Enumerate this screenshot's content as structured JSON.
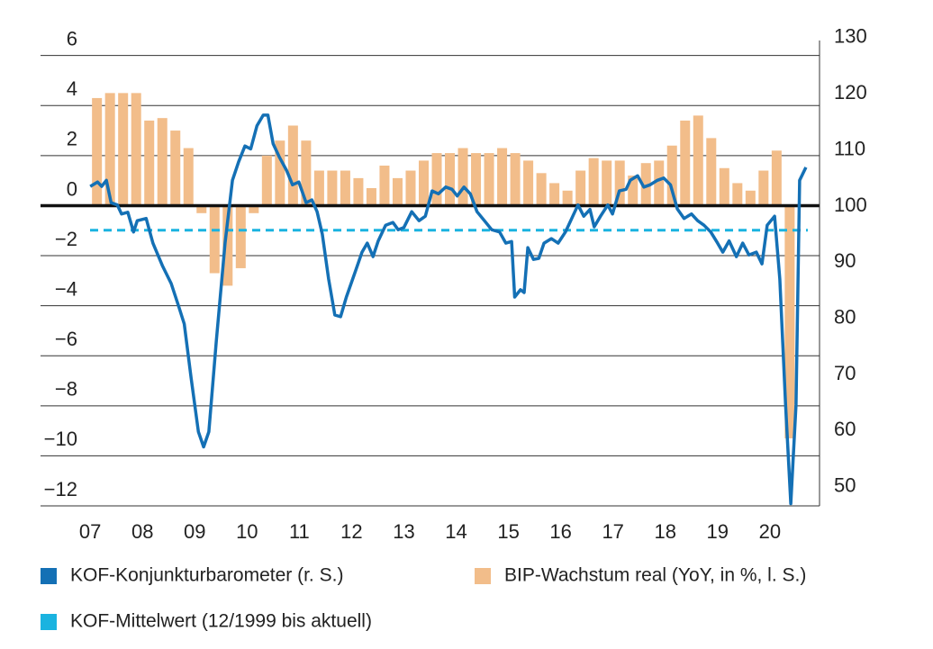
{
  "chart_data": {
    "type": "bar-line",
    "ylim": [
      -12,
      6.6
    ],
    "y2lim": [
      46.6,
      129.5
    ],
    "xlim": [
      2006.05,
      2020.95
    ],
    "yticks": [
      6,
      4,
      2,
      {
        "value": 0,
        "label": "0"
      },
      {
        "value": -2,
        "label": "−2"
      },
      {
        "value": -4,
        "label": "−4"
      },
      {
        "value": -6,
        "label": "−6"
      },
      {
        "value": -8,
        "label": "−8"
      },
      {
        "value": -10,
        "label": "−10"
      },
      {
        "value": -12,
        "label": "−12"
      }
    ],
    "y2ticks": [
      130,
      120,
      110,
      100,
      90,
      80,
      70,
      60,
      50
    ],
    "xticks": [
      {
        "value": 2007,
        "label": "07"
      },
      {
        "value": 2008,
        "label": "08"
      },
      {
        "value": 2009,
        "label": "09"
      },
      {
        "value": 2010,
        "label": "10"
      },
      {
        "value": 2011,
        "label": "11"
      },
      {
        "value": 2012,
        "label": "12"
      },
      {
        "value": 2013,
        "label": "13"
      },
      {
        "value": 2014,
        "label": "14"
      },
      {
        "value": 2015,
        "label": "15"
      },
      {
        "value": 2016,
        "label": "16"
      },
      {
        "value": 2017,
        "label": "17"
      },
      {
        "value": 2018,
        "label": "18"
      },
      {
        "value": 2019,
        "label": "19"
      },
      {
        "value": 2020,
        "label": "20"
      }
    ],
    "grid": true,
    "series": [
      {
        "name": "KOF-Konjunkturbarometer (r. S.)",
        "color": "#1470b5",
        "kind": "line",
        "axis": "y2",
        "x": [
          2007.0,
          2007.14,
          2007.22,
          2007.31,
          2007.4,
          2007.52,
          2007.6,
          2007.72,
          2007.83,
          2007.9,
          2008.07,
          2008.2,
          2008.38,
          2008.55,
          2008.69,
          2008.8,
          2008.93,
          2009.07,
          2009.17,
          2009.27,
          2009.41,
          2009.58,
          2009.72,
          2009.84,
          2009.96,
          2010.07,
          2010.19,
          2010.31,
          2010.4,
          2010.5,
          2010.62,
          2010.76,
          2010.87,
          2010.99,
          2011.13,
          2011.24,
          2011.34,
          2011.44,
          2011.56,
          2011.68,
          2011.79,
          2011.9,
          2012.08,
          2012.2,
          2012.3,
          2012.41,
          2012.51,
          2012.65,
          2012.79,
          2012.89,
          2013.0,
          2013.15,
          2013.29,
          2013.41,
          2013.54,
          2013.66,
          2013.8,
          2013.92,
          2014.02,
          2014.15,
          2014.27,
          2014.4,
          2014.54,
          2014.68,
          2014.83,
          2014.95,
          2015.06,
          2015.12,
          2015.23,
          2015.3,
          2015.37,
          2015.48,
          2015.58,
          2015.68,
          2015.82,
          2015.95,
          2016.09,
          2016.23,
          2016.33,
          2016.44,
          2016.56,
          2016.64,
          2016.76,
          2016.9,
          2016.99,
          2017.12,
          2017.25,
          2017.33,
          2017.47,
          2017.59,
          2017.71,
          2017.85,
          2017.97,
          2018.1,
          2018.23,
          2018.36,
          2018.5,
          2018.62,
          2018.74,
          2018.87,
          2019.0,
          2019.1,
          2019.22,
          2019.36,
          2019.48,
          2019.6,
          2019.74,
          2019.85,
          2019.95,
          2020.09,
          2020.19,
          2020.3,
          2020.4,
          2020.5,
          2020.57,
          2020.69
        ],
        "values": [
          103.5,
          104.3,
          103.5,
          104.6,
          100.6,
          100.2,
          98.6,
          98.9,
          95.4,
          97.4,
          97.8,
          93.4,
          89.4,
          86.2,
          82.2,
          79.0,
          69.4,
          59.8,
          57.1,
          59.8,
          75.8,
          93.4,
          104.6,
          107.9,
          110.7,
          110.2,
          114.3,
          116.2,
          116.2,
          111.1,
          108.7,
          106.3,
          103.8,
          104.3,
          100.6,
          101.1,
          99.0,
          95.0,
          87.0,
          80.6,
          80.3,
          83.8,
          88.6,
          91.8,
          93.4,
          91.0,
          93.8,
          96.6,
          97.1,
          95.8,
          96.2,
          99.0,
          97.4,
          98.2,
          102.7,
          102.2,
          103.4,
          103.0,
          101.8,
          103.4,
          102.2,
          99.0,
          97.4,
          95.8,
          95.4,
          93.4,
          93.7,
          83.8,
          85.1,
          84.6,
          92.6,
          90.5,
          90.7,
          93.4,
          94.2,
          93.4,
          95.4,
          98.2,
          100.2,
          98.2,
          99.4,
          96.3,
          98.2,
          100.2,
          98.6,
          102.7,
          103.0,
          104.6,
          105.4,
          103.4,
          103.8,
          104.6,
          105.0,
          103.8,
          99.5,
          97.8,
          98.6,
          97.4,
          96.6,
          95.4,
          93.4,
          91.8,
          93.8,
          91.0,
          93.4,
          91.3,
          91.8,
          89.7,
          96.6,
          98.2,
          87.0,
          64.6,
          47.0,
          64.6,
          104.6,
          106.9
        ]
      },
      {
        "name": "BIP-Wachstum real (YoY, in %, l. S.)",
        "color": "#f2bd8a",
        "kind": "bar",
        "x": [
          2007,
          2007.25,
          2007.5,
          2007.75,
          2008,
          2008.25,
          2008.5,
          2008.75,
          2009,
          2009.25,
          2009.5,
          2009.75,
          2010,
          2010.25,
          2010.5,
          2010.75,
          2011,
          2011.25,
          2011.5,
          2011.75,
          2012,
          2012.25,
          2012.5,
          2012.75,
          2013,
          2013.25,
          2013.5,
          2013.75,
          2014,
          2014.25,
          2014.5,
          2014.75,
          2015,
          2015.25,
          2015.5,
          2015.75,
          2016,
          2016.25,
          2016.5,
          2016.75,
          2017,
          2017.25,
          2017.5,
          2017.75,
          2018,
          2018.25,
          2018.5,
          2018.75,
          2019,
          2019.25,
          2019.5,
          2019.75,
          2020,
          2020.25
        ],
        "values": [
          4.3,
          4.5,
          4.5,
          4.5,
          3.4,
          3.5,
          3.0,
          2.3,
          -0.3,
          -2.7,
          -3.2,
          -2.5,
          -0.3,
          2.0,
          2.6,
          3.2,
          2.6,
          1.4,
          1.4,
          1.4,
          1.1,
          0.7,
          1.6,
          1.1,
          1.4,
          1.8,
          2.1,
          2.1,
          2.3,
          2.1,
          2.1,
          2.3,
          2.1,
          1.8,
          1.3,
          0.9,
          0.6,
          1.4,
          1.9,
          1.8,
          1.8,
          1.2,
          1.7,
          1.8,
          2.4,
          3.4,
          3.6,
          2.7,
          1.5,
          0.9,
          0.6,
          1.4,
          2.2,
          -9.3
        ]
      },
      {
        "name": "KOF-Mittelwert (12/1999 bis aktuell)",
        "color": "#1ab3e0",
        "kind": "hline",
        "axis": "y2",
        "value": 95.7
      }
    ]
  }
}
